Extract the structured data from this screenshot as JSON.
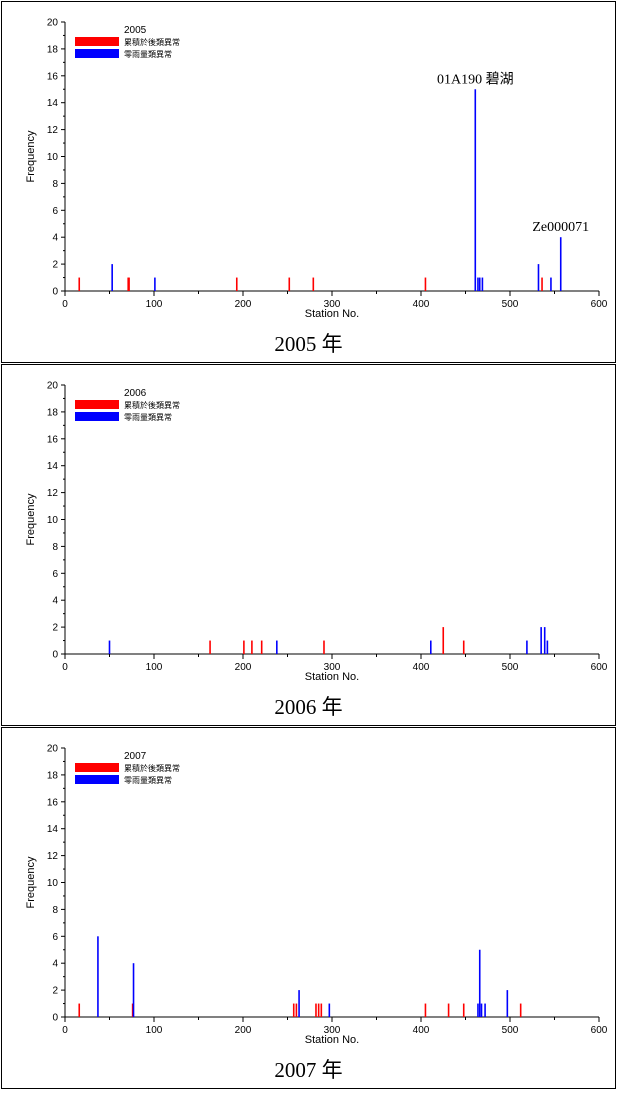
{
  "chart_data": [
    {
      "type": "bar",
      "title": "2005",
      "caption": "2005 年",
      "xlabel": "Station No.",
      "ylabel": "Frequency",
      "xlim": [
        0,
        600
      ],
      "ylim": [
        0,
        20
      ],
      "xticks": [
        "0",
        "100",
        "200",
        "300",
        "400",
        "500",
        "600"
      ],
      "yticks": [
        "0",
        "2",
        "4",
        "6",
        "8",
        "10",
        "12",
        "14",
        "16",
        "18",
        "20"
      ],
      "legend": "top-left",
      "grid": false,
      "series": [
        {
          "name": "累積於後類異常",
          "color": "#ff0000",
          "points": [
            [
              16,
              1
            ],
            [
              71,
              1
            ],
            [
              72,
              1
            ],
            [
              193,
              1
            ],
            [
              252,
              1
            ],
            [
              279,
              1
            ],
            [
              405,
              1
            ],
            [
              536,
              1
            ]
          ]
        },
        {
          "name": "零雨量類異常",
          "color": "#0000ff",
          "points": [
            [
              53,
              2
            ],
            [
              101,
              1
            ],
            [
              461,
              15
            ],
            [
              464,
              1
            ],
            [
              466,
              1
            ],
            [
              469,
              1
            ],
            [
              532,
              2
            ],
            [
              546,
              1
            ],
            [
              557,
              4
            ]
          ]
        }
      ],
      "annotations": [
        {
          "text": "01A190 碧湖",
          "x": 461,
          "y": 15
        },
        {
          "text": "Ze000071",
          "x": 557,
          "y": 4
        }
      ]
    },
    {
      "type": "bar",
      "title": "2006",
      "caption": "2006 年",
      "xlabel": "Station No.",
      "ylabel": "Frequency",
      "xlim": [
        0,
        600
      ],
      "ylim": [
        0,
        20
      ],
      "xticks": [
        "0",
        "100",
        "200",
        "300",
        "400",
        "500",
        "600"
      ],
      "yticks": [
        "0",
        "2",
        "4",
        "6",
        "8",
        "10",
        "12",
        "14",
        "16",
        "18",
        "20"
      ],
      "legend": "top-left",
      "grid": false,
      "series": [
        {
          "name": "累積於後類異常",
          "color": "#ff0000",
          "points": [
            [
              163,
              1
            ],
            [
              201,
              1
            ],
            [
              210,
              1
            ],
            [
              221,
              1
            ],
            [
              291,
              1
            ],
            [
              425,
              2
            ],
            [
              448,
              1
            ]
          ]
        },
        {
          "name": "零雨量類異常",
          "color": "#0000ff",
          "points": [
            [
              50,
              1
            ],
            [
              238,
              1
            ],
            [
              411,
              1
            ],
            [
              519,
              1
            ],
            [
              535,
              2
            ],
            [
              539,
              2
            ],
            [
              542,
              1
            ]
          ]
        }
      ],
      "annotations": []
    },
    {
      "type": "bar",
      "title": "2007",
      "caption": "2007 年",
      "xlabel": "Station No.",
      "ylabel": "Frequency",
      "xlim": [
        0,
        600
      ],
      "ylim": [
        0,
        20
      ],
      "xticks": [
        "0",
        "100",
        "200",
        "300",
        "400",
        "500",
        "600"
      ],
      "yticks": [
        "0",
        "2",
        "4",
        "6",
        "8",
        "10",
        "12",
        "14",
        "16",
        "18",
        "20"
      ],
      "legend": "top-left",
      "grid": false,
      "series": [
        {
          "name": "累積於後類異常",
          "color": "#ff0000",
          "points": [
            [
              16,
              1
            ],
            [
              76,
              1
            ],
            [
              257,
              1
            ],
            [
              260,
              1
            ],
            [
              282,
              1
            ],
            [
              285,
              1
            ],
            [
              288,
              1
            ],
            [
              405,
              1
            ],
            [
              431,
              1
            ],
            [
              448,
              1
            ],
            [
              512,
              1
            ]
          ]
        },
        {
          "name": "零雨量類異常",
          "color": "#0000ff",
          "points": [
            [
              37,
              6
            ],
            [
              77,
              4
            ],
            [
              263,
              2
            ],
            [
              297,
              1
            ],
            [
              464,
              1
            ],
            [
              466,
              5
            ],
            [
              468,
              1
            ],
            [
              472,
              1
            ],
            [
              497,
              2
            ]
          ]
        }
      ],
      "annotations": []
    }
  ]
}
